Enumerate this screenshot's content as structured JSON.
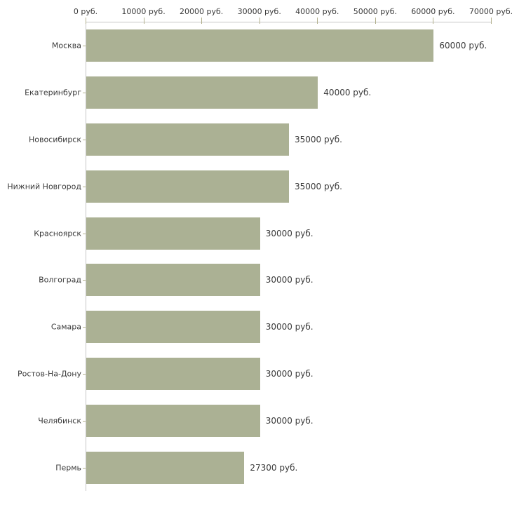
{
  "chart_data": {
    "type": "bar",
    "orientation": "horizontal",
    "title": "",
    "xlabel": "",
    "ylabel": "",
    "unit": "руб.",
    "grid": false,
    "legend": null,
    "xlim": [
      0,
      70000
    ],
    "x_ticks": [
      0,
      10000,
      20000,
      30000,
      40000,
      50000,
      60000,
      70000
    ],
    "x_tick_labels": [
      "0 руб.",
      "10000 руб.",
      "20000 руб.",
      "30000 руб.",
      "40000 руб.",
      "50000 руб.",
      "60000 руб.",
      "70000 руб."
    ],
    "categories": [
      "Москва",
      "Екатеринбург",
      "Новосибирск",
      "Нижний Новгород",
      "Красноярск",
      "Волгоград",
      "Самара",
      "Ростов-На-Дону",
      "Челябинск",
      "Пермь"
    ],
    "values": [
      60000,
      40000,
      35000,
      35000,
      30000,
      30000,
      30000,
      30000,
      30000,
      27300
    ],
    "value_labels": [
      "60000 руб.",
      "40000 руб.",
      "35000 руб.",
      "35000 руб.",
      "30000 руб.",
      "30000 руб.",
      "30000 руб.",
      "30000 руб.",
      "30000 руб.",
      "27300 руб."
    ],
    "colors": {
      "bar_fill": "#abb194",
      "axis_line": "#c6c6c6",
      "tick_mark": "#b2b08d",
      "text": "#3a3a3a",
      "background": "#ffffff"
    }
  }
}
